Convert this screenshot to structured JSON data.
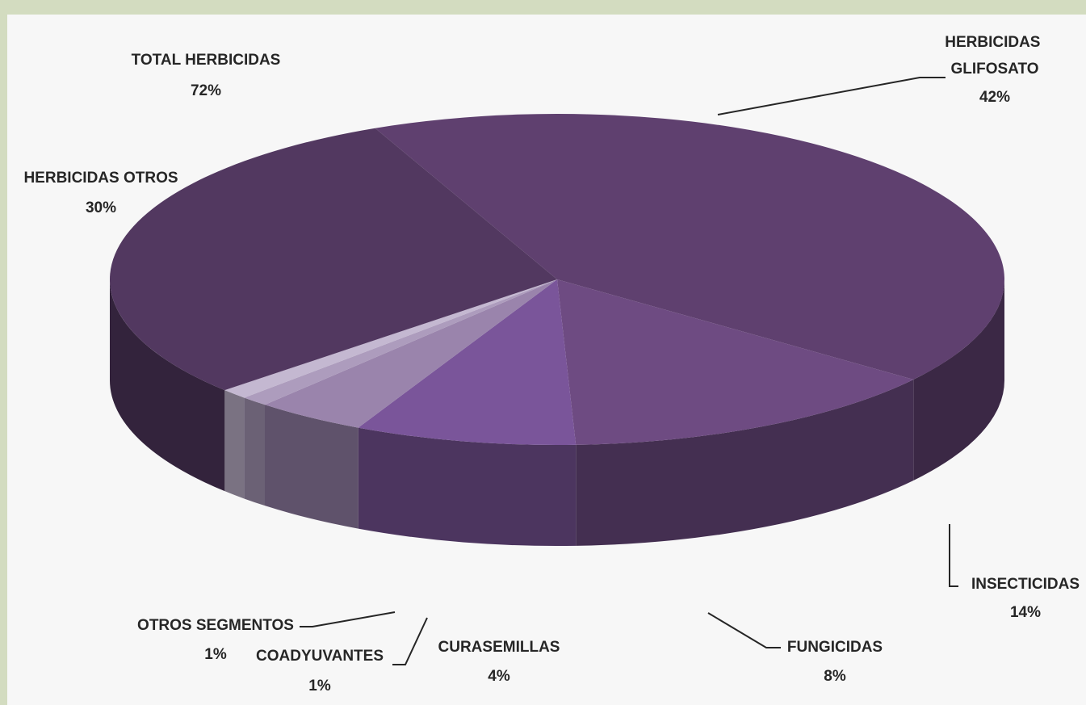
{
  "chart_data": {
    "type": "pie",
    "three_d": true,
    "title": "",
    "slices": [
      {
        "label": "HERBICIDAS GLIFOSATO",
        "value": 42,
        "display": "42%",
        "color": "#5f406f"
      },
      {
        "label": "INSECTICIDAS",
        "value": 14,
        "display": "14%",
        "color": "#6e4b82"
      },
      {
        "label": "FUNGICIDAS",
        "value": 8,
        "display": "8%",
        "color": "#7a559a"
      },
      {
        "label": "CURASEMILLAS",
        "value": 4,
        "display": "4%",
        "color": "#9a84ac"
      },
      {
        "label": "COADYUVANTES",
        "value": 1,
        "display": "1%",
        "color": "#ad9cbd"
      },
      {
        "label": "OTROS SEGMENTOS",
        "value": 1,
        "display": "1%",
        "color": "#c4b8d1"
      },
      {
        "label": "HERBICIDAS OTROS",
        "value": 30,
        "display": "30%",
        "color": "#523860"
      }
    ],
    "annotations": [
      {
        "label": "TOTAL HERBICIDAS",
        "display": "72%"
      }
    ],
    "colors": {
      "page_background": "#d3dcc0",
      "chart_background": "#f7f7f7",
      "leader_line": "#262626"
    }
  }
}
